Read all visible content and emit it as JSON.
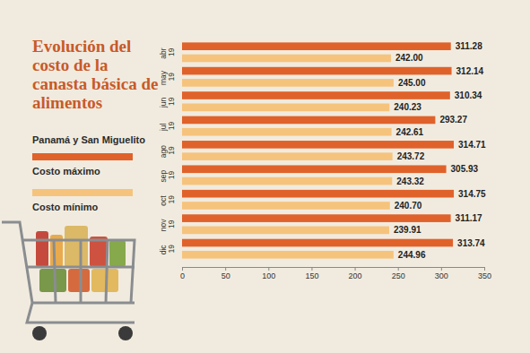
{
  "chart_data": {
    "type": "bar",
    "orientation": "horizontal",
    "title": "Evolución del costo de la canasta básica de alimentos",
    "subtitle": "Panamá y San Miguelito",
    "categories": [
      "abr 19",
      "may 19",
      "jun 19",
      "jul 19",
      "ago 19",
      "sep 19",
      "oct 19",
      "nov 19",
      "dic 19"
    ],
    "series": [
      {
        "name": "Costo máximo",
        "color": "#e0622b",
        "values": [
          311.28,
          312.14,
          310.34,
          293.27,
          314.71,
          305.93,
          314.75,
          311.17,
          313.74
        ]
      },
      {
        "name": "Costo mínimo",
        "color": "#f6c37d",
        "values": [
          242.0,
          245.0,
          240.23,
          242.61,
          243.72,
          243.32,
          240.7,
          239.91,
          244.96
        ],
        "value_labels": [
          "242.00",
          "245.00",
          "240.23",
          "242.61",
          "243.72",
          "243.32",
          "240.70",
          "239.91",
          "244.96"
        ]
      }
    ],
    "xlim": [
      0,
      350
    ],
    "xticks": [
      0,
      50,
      100,
      150,
      200,
      250,
      300,
      350
    ],
    "grid": false,
    "data_labels": true
  }
}
